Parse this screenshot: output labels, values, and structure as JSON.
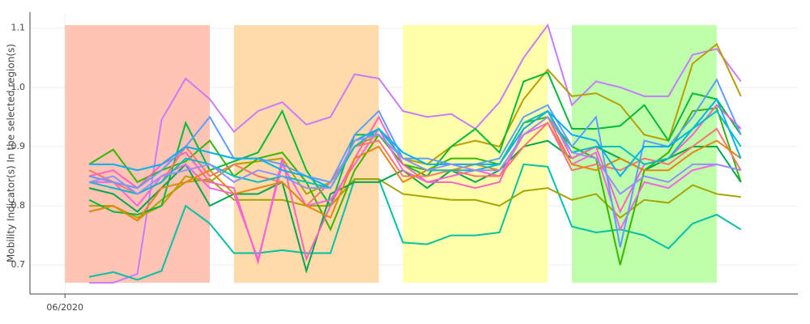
{
  "chart_data": {
    "type": "line",
    "ylabel": "Mobility Indicator(s) In the selected region(s)",
    "x": [
      1,
      2,
      3,
      4,
      5,
      6,
      7,
      8,
      9,
      10,
      11,
      12,
      13,
      14,
      15,
      16,
      17,
      18,
      19,
      20,
      21,
      22,
      23,
      24,
      25,
      26,
      27,
      28
    ],
    "xlim": [
      -1.45,
      30.36
    ],
    "xticks": [
      {
        "value": 0,
        "label": "06/2020"
      }
    ],
    "ylim": [
      0.651,
      1.127
    ],
    "yticks": [
      0.7,
      0.8,
      0.9,
      {
        "value": 1,
        "label": "1.0"
      },
      1.1
    ],
    "grid": true,
    "bands": [
      {
        "x": [
          0,
          6
        ],
        "y": [
          0.67,
          1.105
        ],
        "color": "#ffc4b3"
      },
      {
        "x": [
          7,
          13
        ],
        "y": [
          0.67,
          1.105
        ],
        "color": "#ffdaaa"
      },
      {
        "x": [
          14,
          20
        ],
        "y": [
          0.67,
          1.105
        ],
        "color": "#ffffaa"
      },
      {
        "x": [
          21,
          27
        ],
        "y": [
          0.67,
          1.105
        ],
        "color": "#bfffab"
      }
    ],
    "series": [
      {
        "color": "#c77cff",
        "values": [
          0.67,
          0.67,
          0.685,
          0.945,
          1.015,
          0.98,
          0.925,
          0.96,
          0.975,
          0.937,
          0.95,
          1.022,
          1.015,
          0.96,
          0.95,
          0.955,
          0.93,
          0.975,
          1.05,
          1.105,
          0.97,
          1.01,
          1.0,
          0.985,
          0.985,
          1.055,
          1.065,
          1.01
        ]
      },
      {
        "color": "#00c1a3",
        "values": [
          0.68,
          0.688,
          0.675,
          0.69,
          0.8,
          0.77,
          0.72,
          0.72,
          0.725,
          0.72,
          0.72,
          0.845,
          0.845,
          0.738,
          0.735,
          0.75,
          0.75,
          0.755,
          0.87,
          0.866,
          0.765,
          0.755,
          0.76,
          0.75,
          0.728,
          0.77,
          0.785,
          0.76
        ]
      },
      {
        "color": "#a3a500",
        "values": [
          0.8,
          0.8,
          0.775,
          0.81,
          0.84,
          0.845,
          0.81,
          0.81,
          0.81,
          0.8,
          0.8,
          0.845,
          0.845,
          0.82,
          0.815,
          0.81,
          0.81,
          0.8,
          0.825,
          0.83,
          0.81,
          0.82,
          0.78,
          0.81,
          0.805,
          0.835,
          0.82,
          0.815
        ]
      },
      {
        "color": "#b79f00",
        "values": [
          0.79,
          0.8,
          0.78,
          0.8,
          0.85,
          0.84,
          0.87,
          0.875,
          0.88,
          0.82,
          0.84,
          0.9,
          0.92,
          0.88,
          0.87,
          0.9,
          0.91,
          0.9,
          0.98,
          1.03,
          0.985,
          0.99,
          0.97,
          0.92,
          0.91,
          1.04,
          1.073,
          0.985
        ]
      },
      {
        "color": "#00ba38",
        "values": [
          0.81,
          0.79,
          0.785,
          0.8,
          0.94,
          0.86,
          0.875,
          0.89,
          0.96,
          0.86,
          0.8,
          0.92,
          0.92,
          0.87,
          0.85,
          0.9,
          0.93,
          0.89,
          1.01,
          1.025,
          0.93,
          0.93,
          0.935,
          0.97,
          0.91,
          0.99,
          0.98,
          0.92
        ]
      },
      {
        "color": "#39b600",
        "values": [
          0.87,
          0.895,
          0.84,
          0.86,
          0.875,
          0.91,
          0.85,
          0.88,
          0.89,
          0.84,
          0.76,
          0.86,
          0.92,
          0.87,
          0.86,
          0.88,
          0.88,
          0.87,
          0.94,
          0.95,
          0.9,
          0.88,
          0.7,
          0.86,
          0.89,
          0.96,
          0.965,
          0.84
        ]
      },
      {
        "color": "#00a650",
        "values": [
          0.83,
          0.82,
          0.79,
          0.83,
          0.87,
          0.8,
          0.82,
          0.82,
          0.84,
          0.69,
          0.82,
          0.84,
          0.84,
          0.86,
          0.83,
          0.86,
          0.84,
          0.86,
          0.9,
          0.91,
          0.88,
          0.9,
          0.88,
          0.86,
          0.88,
          0.9,
          0.9,
          0.84
        ]
      },
      {
        "color": "#ff61c3",
        "values": [
          0.85,
          0.86,
          0.83,
          0.87,
          0.89,
          0.84,
          0.83,
          0.705,
          0.88,
          0.71,
          0.8,
          0.88,
          0.95,
          0.87,
          0.84,
          0.84,
          0.83,
          0.84,
          0.93,
          0.96,
          0.88,
          0.9,
          0.79,
          0.87,
          0.88,
          0.92,
          0.97,
          0.93
        ]
      },
      {
        "color": "#f564e3",
        "values": [
          0.84,
          0.84,
          0.8,
          0.85,
          0.87,
          0.83,
          0.82,
          0.71,
          0.87,
          0.8,
          0.81,
          0.87,
          0.93,
          0.86,
          0.84,
          0.85,
          0.86,
          0.85,
          0.92,
          0.94,
          0.87,
          0.89,
          0.76,
          0.84,
          0.83,
          0.86,
          0.87,
          0.86
        ]
      },
      {
        "color": "#f8766d",
        "values": [
          0.86,
          0.84,
          0.82,
          0.84,
          0.9,
          0.85,
          0.87,
          0.85,
          0.84,
          0.8,
          0.84,
          0.9,
          0.91,
          0.85,
          0.85,
          0.86,
          0.85,
          0.85,
          0.9,
          0.94,
          0.86,
          0.87,
          0.86,
          0.88,
          0.87,
          0.9,
          0.93,
          0.86
        ]
      },
      {
        "color": "#e68613",
        "values": [
          0.79,
          0.8,
          0.775,
          0.83,
          0.84,
          0.86,
          0.82,
          0.83,
          0.84,
          0.8,
          0.78,
          0.88,
          0.9,
          0.84,
          0.86,
          0.86,
          0.87,
          0.86,
          0.92,
          0.95,
          0.87,
          0.86,
          0.88,
          0.86,
          0.86,
          0.89,
          0.91,
          0.88
        ]
      },
      {
        "color": "#619cff",
        "values": [
          0.85,
          0.84,
          0.83,
          0.86,
          0.9,
          0.95,
          0.88,
          0.88,
          0.87,
          0.85,
          0.84,
          0.92,
          0.96,
          0.88,
          0.88,
          0.87,
          0.87,
          0.88,
          0.95,
          0.97,
          0.9,
          0.95,
          0.73,
          0.91,
          0.9,
          0.95,
          1.013,
          0.92
        ]
      },
      {
        "color": "#00b0f6",
        "values": [
          0.87,
          0.87,
          0.86,
          0.87,
          0.9,
          0.89,
          0.88,
          0.88,
          0.86,
          0.85,
          0.83,
          0.91,
          0.93,
          0.89,
          0.87,
          0.87,
          0.87,
          0.87,
          0.93,
          0.96,
          0.92,
          0.91,
          0.85,
          0.9,
          0.9,
          0.93,
          0.98,
          0.88
        ]
      },
      {
        "color": "#00bfc4",
        "values": [
          0.84,
          0.83,
          0.82,
          0.84,
          0.88,
          0.87,
          0.85,
          0.84,
          0.85,
          0.84,
          0.83,
          0.9,
          0.93,
          0.88,
          0.86,
          0.86,
          0.86,
          0.87,
          0.94,
          0.96,
          0.89,
          0.9,
          0.9,
          0.87,
          0.88,
          0.93,
          0.96,
          0.9
        ]
      },
      {
        "color": "#9590ff",
        "values": [
          0.84,
          0.85,
          0.82,
          0.85,
          0.86,
          0.87,
          0.84,
          0.86,
          0.85,
          0.83,
          0.83,
          0.91,
          0.92,
          0.88,
          0.86,
          0.87,
          0.86,
          0.86,
          0.92,
          0.95,
          0.89,
          0.88,
          0.82,
          0.85,
          0.84,
          0.87,
          0.87,
          0.86
        ]
      }
    ]
  }
}
